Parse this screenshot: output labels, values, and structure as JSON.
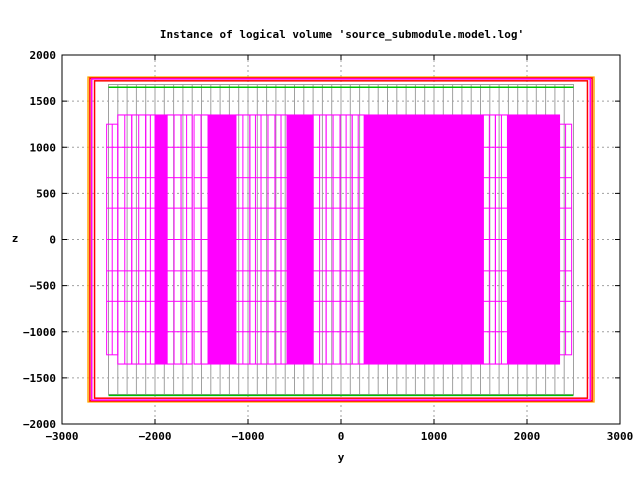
{
  "chart_data": {
    "type": "line",
    "title": "Instance of logical volume 'source_submodule.model.log'",
    "xlabel": "y",
    "ylabel": "z",
    "xlim": [
      -3000,
      3000
    ],
    "ylim": [
      -2000,
      2000
    ],
    "xticks": [
      -3000,
      -2000,
      -1000,
      0,
      1000,
      2000,
      3000
    ],
    "yticks": [
      -2000,
      -1500,
      -1000,
      -500,
      0,
      500,
      1000,
      1500,
      2000
    ],
    "xtick_labels": [
      "−3000",
      "−2000",
      "−1000",
      "0",
      "1000",
      "2000",
      "3000"
    ],
    "ytick_labels": [
      "−2000",
      "−1500",
      "−1000",
      "−500",
      "0",
      "500",
      "1000",
      "1500",
      "2000"
    ],
    "grid": true,
    "colors": {
      "outer_envelope": "#ff0000",
      "orange_envelope": "#ffa500",
      "magenta": "#ff00ff",
      "gray_frame": "#a0a0a0",
      "green_bars": "#00c000",
      "grid": "#a0a0a0"
    },
    "envelopes": [
      {
        "y0": -2720,
        "y1": 2720,
        "z0": -1760,
        "z1": 1760,
        "color": "#ffa500"
      },
      {
        "y0": -2700,
        "y1": 2700,
        "z0": -1750,
        "z1": 1750,
        "color": "#ff0000"
      },
      {
        "y0": -2650,
        "y1": 2650,
        "z0": -1720,
        "z1": 1720,
        "color": "#ff0000"
      },
      {
        "y0": -2680,
        "y1": 2680,
        "z0": -1740,
        "z1": 1740,
        "color": "#ff00ff"
      }
    ],
    "gray_frame": {
      "y0": -2500,
      "y1": 2500,
      "z0": -1680,
      "z1": 1680
    },
    "gray_columns_y": [
      -2500,
      -2400,
      -2300,
      -2200,
      -2100,
      -2000,
      -1900,
      -1800,
      -1700,
      -1600,
      -1500,
      -1400,
      -1300,
      -1200,
      -1100,
      -1000,
      -900,
      -800,
      -700,
      -600,
      -500,
      -400,
      -300,
      -200,
      -100,
      0,
      100,
      200,
      300,
      400,
      500,
      600,
      700,
      800,
      900,
      1000,
      1100,
      1200,
      1300,
      1400,
      1500,
      1600,
      1700,
      1800,
      1900,
      2000,
      2100,
      2200,
      2300,
      2400,
      2500
    ],
    "green_lines": [
      {
        "y0": -2500,
        "y1": 2500,
        "z": 1650
      },
      {
        "y0": -2500,
        "y1": 2500,
        "z": -1690
      }
    ],
    "modules": [
      {
        "y0": -2520,
        "y1": -2400,
        "z0": -1250,
        "z1": 1250,
        "filled": false
      },
      {
        "y0": -2400,
        "y1": -2250,
        "z0": -1350,
        "z1": 1350,
        "filled": false
      },
      {
        "y0": -2250,
        "y1": -2100,
        "z0": -1350,
        "z1": 1350,
        "filled": false
      },
      {
        "y0": -2100,
        "y1": -2000,
        "z0": -1350,
        "z1": 1350,
        "filled": false
      },
      {
        "y0": -2000,
        "y1": -1870,
        "z0": -1350,
        "z1": 1350,
        "filled": true
      },
      {
        "y0": -1870,
        "y1": -1720,
        "z0": -1350,
        "z1": 1350,
        "filled": false
      },
      {
        "y0": -1720,
        "y1": -1600,
        "z0": -1350,
        "z1": 1350,
        "filled": false
      },
      {
        "y0": -1580,
        "y1": -1430,
        "z0": -1350,
        "z1": 1350,
        "filled": false
      },
      {
        "y0": -1430,
        "y1": -1130,
        "z0": -1350,
        "z1": 1350,
        "filled": true
      },
      {
        "y0": -1130,
        "y1": -980,
        "z0": -1350,
        "z1": 1350,
        "filled": false
      },
      {
        "y0": -980,
        "y1": -860,
        "z0": -1350,
        "z1": 1350,
        "filled": false
      },
      {
        "y0": -860,
        "y1": -710,
        "z0": -1350,
        "z1": 1350,
        "filled": false
      },
      {
        "y0": -710,
        "y1": -580,
        "z0": -1350,
        "z1": 1350,
        "filled": false
      },
      {
        "y0": -580,
        "y1": -300,
        "z0": -1350,
        "z1": 1350,
        "filled": true
      },
      {
        "y0": -300,
        "y1": -160,
        "z0": -1350,
        "z1": 1350,
        "filled": false
      },
      {
        "y0": -160,
        "y1": -10,
        "z0": -1350,
        "z1": 1350,
        "filled": false
      },
      {
        "y0": -10,
        "y1": 120,
        "z0": -1350,
        "z1": 1350,
        "filled": false
      },
      {
        "y0": 120,
        "y1": 250,
        "z0": -1350,
        "z1": 1350,
        "filled": false
      },
      {
        "y0": 250,
        "y1": 1530,
        "z0": -1350,
        "z1": 1350,
        "filled": true
      },
      {
        "y0": 1530,
        "y1": 1660,
        "z0": -1350,
        "z1": 1350,
        "filled": false
      },
      {
        "y0": 1660,
        "y1": 1790,
        "z0": -1350,
        "z1": 1350,
        "filled": false
      },
      {
        "y0": 1790,
        "y1": 2350,
        "z0": -1350,
        "z1": 1350,
        "filled": true
      },
      {
        "y0": 2350,
        "y1": 2480,
        "z0": -1250,
        "z1": 1250,
        "filled": false
      }
    ],
    "module_rows_z": [
      -1350,
      -1000,
      -670,
      -340,
      0,
      340,
      670,
      1000,
      1350
    ]
  }
}
